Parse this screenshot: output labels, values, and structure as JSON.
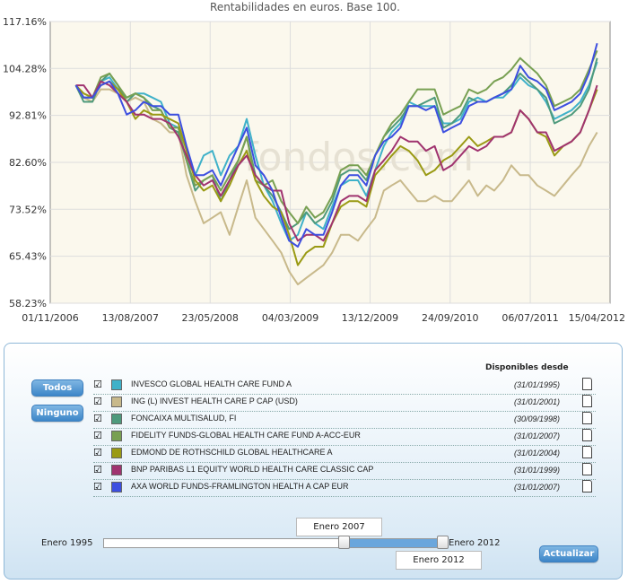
{
  "chart_data": {
    "type": "line",
    "title": "Rentabilidades en euros. Base 100.",
    "y_ticks": [
      "117.16%",
      "104.28%",
      "92.81%",
      "82.60%",
      "73.52%",
      "65.43%",
      "58.23%"
    ],
    "y_tick_values": [
      117.16,
      104.28,
      92.81,
      82.6,
      73.52,
      65.43,
      58.23
    ],
    "ylim": [
      58.23,
      117.16
    ],
    "y_scale": "log",
    "x_ticks": [
      "01/11/2006",
      "13/08/2007",
      "23/05/2008",
      "04/03/2009",
      "13/12/2009",
      "24/09/2010",
      "06/07/2011",
      "15/04/2012"
    ],
    "xlim": [
      "2006-11-01",
      "2012-04-15"
    ],
    "grid": true,
    "watermark": "fondos.com",
    "x": [
      "2007-01-31",
      "2007-02-28",
      "2007-03-31",
      "2007-04-30",
      "2007-05-31",
      "2007-06-30",
      "2007-07-31",
      "2007-08-31",
      "2007-09-30",
      "2007-10-31",
      "2007-11-30",
      "2007-12-31",
      "2008-01-31",
      "2008-02-29",
      "2008-03-31",
      "2008-04-30",
      "2008-05-31",
      "2008-06-30",
      "2008-07-31",
      "2008-08-31",
      "2008-09-30",
      "2008-10-31",
      "2008-11-30",
      "2008-12-31",
      "2009-01-31",
      "2009-02-28",
      "2009-03-31",
      "2009-04-30",
      "2009-05-31",
      "2009-06-30",
      "2009-07-31",
      "2009-08-31",
      "2009-09-30",
      "2009-10-31",
      "2009-11-30",
      "2009-12-31",
      "2010-01-31",
      "2010-02-28",
      "2010-03-31",
      "2010-04-30",
      "2010-05-31",
      "2010-06-30",
      "2010-07-31",
      "2010-08-31",
      "2010-09-30",
      "2010-10-31",
      "2010-11-30",
      "2010-12-31",
      "2011-01-31",
      "2011-02-28",
      "2011-03-31",
      "2011-04-30",
      "2011-05-31",
      "2011-06-30",
      "2011-07-31",
      "2011-08-31",
      "2011-09-30",
      "2011-10-31",
      "2011-11-30",
      "2011-12-31",
      "2012-01-31",
      "2012-02-29"
    ],
    "series": [
      {
        "name": "INVESCO GLOBAL HEALTH CARE FUND A",
        "color": "#3fb1c9",
        "values": [
          100,
          97,
          97,
          101,
          102,
          99,
          97,
          98,
          98,
          97,
          96,
          91,
          90,
          83,
          80,
          84,
          85,
          80,
          84,
          86,
          92,
          84,
          78,
          75,
          71,
          68,
          69,
          73,
          71,
          70,
          74,
          78,
          79,
          79,
          76,
          81,
          86,
          89,
          91,
          96,
          95,
          95,
          95,
          91,
          91,
          92,
          96,
          97,
          96,
          97,
          97,
          99,
          102,
          100,
          99,
          96,
          92,
          93,
          94,
          96,
          100,
          106
        ]
      },
      {
        "name": "ING (L) INVEST HEALTH CARE P CAP (USD)",
        "color": "#c8b98b",
        "values": [
          100,
          97,
          96,
          99,
          99,
          98,
          96,
          97,
          96,
          92,
          91,
          89,
          89,
          80,
          75,
          71,
          72,
          73,
          69,
          74,
          79,
          72,
          70,
          68,
          66,
          63,
          61,
          62,
          63,
          64,
          66,
          69,
          69,
          68,
          70,
          72,
          77,
          78,
          79,
          77,
          75,
          75,
          76,
          75,
          75,
          77,
          79,
          76,
          78,
          77,
          79,
          82,
          80,
          80,
          78,
          77,
          76,
          78,
          80,
          82,
          86,
          89
        ]
      },
      {
        "name": "FONCAIXA MULTISALUD, FI",
        "color": "#4e9a7c",
        "values": [
          100,
          96,
          96,
          101,
          103,
          100,
          96,
          98,
          97,
          95,
          94,
          90,
          89,
          83,
          77,
          79,
          80,
          75,
          79,
          83,
          88,
          80,
          78,
          76,
          73,
          70,
          71,
          73,
          71,
          72,
          75,
          80,
          81,
          81,
          79,
          84,
          88,
          90,
          92,
          95,
          95,
          96,
          97,
          90,
          91,
          93,
          97,
          96,
          96,
          97,
          98,
          100,
          103,
          101,
          99,
          97,
          91,
          92,
          93,
          95,
          99,
          107
        ]
      },
      {
        "name": "FIDELITY FUNDS-GLOBAL HEALTH CARE FUND A-ACC-EUR",
        "color": "#78a052",
        "values": [
          100,
          97,
          97,
          102,
          103,
          100,
          97,
          98,
          97,
          94,
          94,
          90,
          90,
          83,
          78,
          79,
          80,
          77,
          80,
          83,
          88,
          79,
          78,
          79,
          75,
          73,
          71,
          74,
          72,
          73,
          76,
          81,
          82,
          82,
          80,
          84,
          88,
          91,
          93,
          96,
          99,
          99,
          99,
          93,
          94,
          95,
          99,
          98,
          99,
          101,
          102,
          104,
          107,
          105,
          103,
          100,
          95,
          96,
          97,
          99,
          104,
          109
        ]
      },
      {
        "name": "EDMOND DE ROTHSCHILD GLOBAL HEALTHCARE A",
        "color": "#9a9a14",
        "values": [
          100,
          98,
          97,
          100,
          101,
          99,
          96,
          92,
          94,
          93,
          93,
          92,
          91,
          85,
          79,
          77,
          78,
          75,
          78,
          82,
          85,
          79,
          76,
          74,
          73,
          69,
          64,
          66,
          67,
          67,
          71,
          74,
          75,
          75,
          74,
          80,
          82,
          84,
          86,
          85,
          83,
          80,
          81,
          83,
          84,
          86,
          88,
          86,
          87,
          88,
          88,
          89,
          94,
          92,
          89,
          88,
          84,
          86,
          87,
          89,
          94,
          99
        ]
      },
      {
        "name": "BNP PARIBAS L1 EQUITY WORLD HEALTH CARE CLASSIC CAP",
        "color": "#a0336f",
        "values": [
          100,
          100,
          97,
          101,
          100,
          98,
          96,
          93,
          93,
          92,
          92,
          91,
          88,
          84,
          80,
          78,
          79,
          76,
          79,
          82,
          84,
          80,
          78,
          77,
          77,
          71,
          68,
          69,
          69,
          68,
          71,
          75,
          76,
          76,
          75,
          81,
          83,
          85,
          88,
          87,
          87,
          85,
          86,
          81,
          82,
          84,
          86,
          85,
          86,
          88,
          88,
          89,
          94,
          92,
          89,
          89,
          85,
          86,
          87,
          89,
          94,
          100
        ]
      },
      {
        "name": "AXA WORLD FUNDS-FRAMLINGTON HEALTH A CAP EUR",
        "color": "#3d4fe0",
        "values": [
          100,
          97,
          97,
          100,
          101,
          98,
          93,
          94,
          96,
          95,
          95,
          93,
          93,
          86,
          80,
          80,
          81,
          78,
          82,
          86,
          90,
          82,
          80,
          77,
          72,
          68,
          67,
          70,
          69,
          69,
          73,
          78,
          80,
          80,
          78,
          84,
          87,
          88,
          90,
          95,
          95,
          94,
          95,
          89,
          90,
          91,
          95,
          96,
          96,
          97,
          98,
          99,
          105,
          102,
          101,
          99,
          94,
          95,
          96,
          98,
          103,
          111
        ]
      }
    ]
  },
  "controls": {
    "todos_label": "Todos",
    "ninguno_label": "Ninguno",
    "disponibles_header": "Disponibles desde",
    "funds": [
      {
        "checkbox": "☑",
        "name": "INVESCO GLOBAL HEALTH CARE FUND A",
        "date": "(31/01/1995)",
        "icon": "document-icon"
      },
      {
        "checkbox": "☑",
        "name": "ING (L) INVEST HEALTH CARE P CAP (USD)",
        "date": "(31/01/2001)",
        "icon": "document-icon"
      },
      {
        "checkbox": "☑",
        "name": "FONCAIXA MULTISALUD, FI",
        "date": "(30/09/1998)",
        "icon": "document-icon"
      },
      {
        "checkbox": "☑",
        "name": "FIDELITY FUNDS-GLOBAL HEALTH CARE FUND A-ACC-EUR",
        "date": "(31/01/2007)",
        "icon": "document-icon"
      },
      {
        "checkbox": "☑",
        "name": "EDMOND DE ROTHSCHILD GLOBAL HEALTHCARE A",
        "date": "(31/01/2004)",
        "icon": "document-icon"
      },
      {
        "checkbox": "☑",
        "name": "BNP PARIBAS L1 EQUITY WORLD HEALTH CARE CLASSIC CAP",
        "date": "(31/01/1999)",
        "icon": "document-icon"
      },
      {
        "checkbox": "☑",
        "name": "AXA WORLD FUNDS-FRAMLINGTON HEALTH A CAP EUR",
        "date": "(31/01/2007)",
        "icon": "document-icon"
      }
    ],
    "slider": {
      "min_label": "Enero 1995",
      "max_label": "Enero 2012",
      "start_value": "Enero 2007",
      "end_value": "Enero 2012",
      "start_fraction": 0.706,
      "end_fraction": 1.0
    },
    "actualizar_label": "Actualizar"
  }
}
